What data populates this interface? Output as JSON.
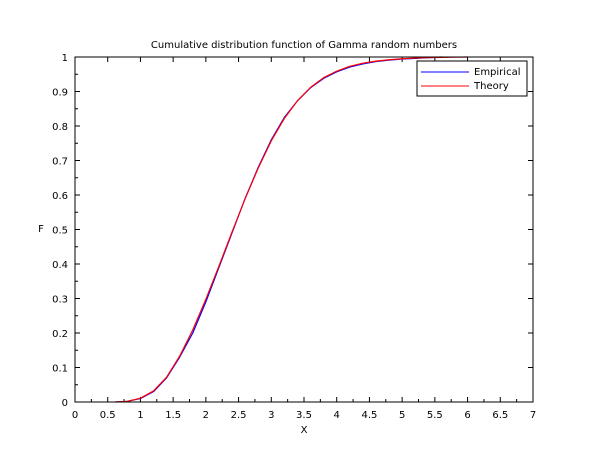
{
  "chart_data": {
    "type": "line",
    "title": "Cumulative distribution function of Gamma random numbers",
    "xlabel": "X",
    "ylabel": "F",
    "xlim": [
      0,
      7
    ],
    "ylim": [
      0,
      1
    ],
    "xticks": [
      "0",
      "0.5",
      "1",
      "1.5",
      "2",
      "2.5",
      "3",
      "3.5",
      "4",
      "4.5",
      "5",
      "5.5",
      "6",
      "6.5",
      "7"
    ],
    "yticks": [
      "0",
      "0.1",
      "0.2",
      "0.3",
      "0.4",
      "0.5",
      "0.6",
      "0.7",
      "0.8",
      "0.9",
      "1"
    ],
    "grid": false,
    "legend_position": "top-right",
    "series": [
      {
        "name": "Empirical",
        "color": "#0000ff",
        "x": [
          0.62,
          0.8,
          1.0,
          1.2,
          1.4,
          1.6,
          1.8,
          2.0,
          2.2,
          2.4,
          2.6,
          2.8,
          3.0,
          3.2,
          3.4,
          3.6,
          3.8,
          4.0,
          4.2,
          4.4,
          4.6,
          4.8,
          5.0,
          5.2,
          5.4,
          5.6
        ],
        "y": [
          0.0,
          0.002,
          0.01,
          0.03,
          0.07,
          0.13,
          0.2,
          0.29,
          0.39,
          0.49,
          0.59,
          0.68,
          0.76,
          0.825,
          0.873,
          0.911,
          0.938,
          0.957,
          0.971,
          0.98,
          0.987,
          0.991,
          0.994,
          0.996,
          0.998,
          1.0
        ]
      },
      {
        "name": "Theory",
        "color": "#ff0000",
        "x": [
          0.62,
          0.8,
          1.0,
          1.2,
          1.4,
          1.6,
          1.8,
          2.0,
          2.2,
          2.4,
          2.6,
          2.8,
          3.0,
          3.2,
          3.4,
          3.6,
          3.8,
          4.0,
          4.2,
          4.4,
          4.6,
          4.8,
          5.0,
          5.2,
          5.4,
          5.6,
          5.8,
          6.0
        ],
        "y": [
          0.0,
          0.002,
          0.011,
          0.032,
          0.072,
          0.133,
          0.209,
          0.298,
          0.394,
          0.493,
          0.589,
          0.678,
          0.757,
          0.822,
          0.873,
          0.912,
          0.94,
          0.959,
          0.973,
          0.982,
          0.988,
          0.992,
          0.995,
          0.997,
          0.998,
          0.999,
          0.9995,
          1.0
        ]
      }
    ]
  }
}
